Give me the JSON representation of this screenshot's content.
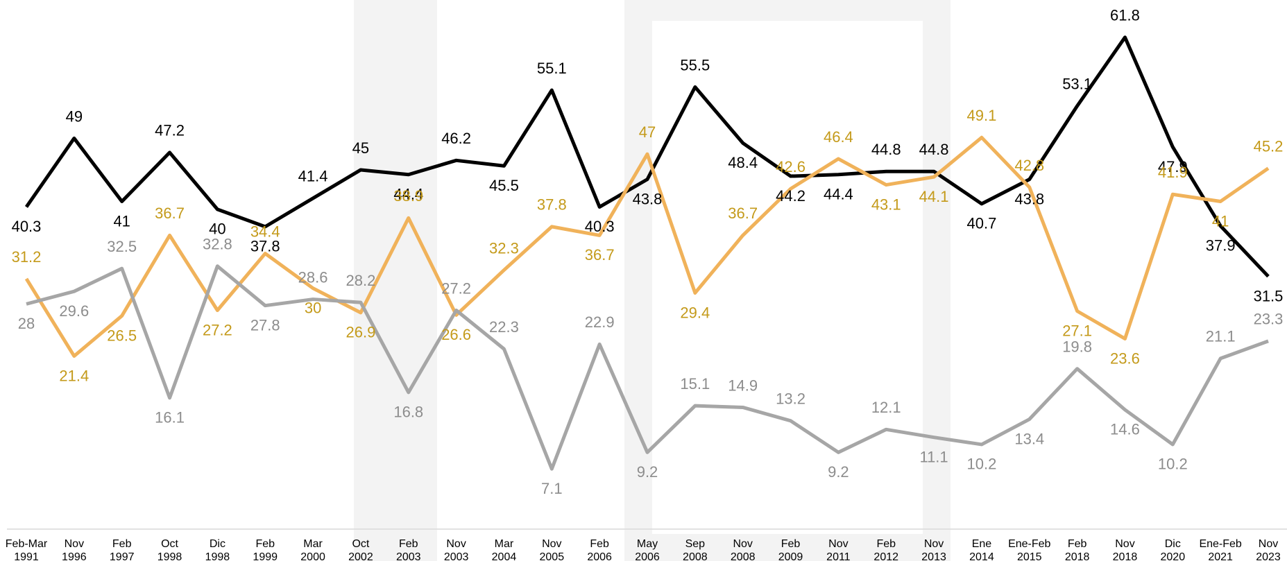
{
  "chart_data": {
    "type": "line",
    "categories": [
      [
        "Feb-Mar",
        "1991"
      ],
      [
        "Nov",
        "1996"
      ],
      [
        "Feb",
        "1997"
      ],
      [
        "Oct",
        "1998"
      ],
      [
        "Dic",
        "1998"
      ],
      [
        "Feb",
        "1999"
      ],
      [
        "Mar",
        "2000"
      ],
      [
        "Oct",
        "2002"
      ],
      [
        "Feb",
        "2003"
      ],
      [
        "Nov",
        "2003"
      ],
      [
        "Mar",
        "2004"
      ],
      [
        "Nov",
        "2005"
      ],
      [
        "Feb",
        "2006"
      ],
      [
        "May",
        "2006"
      ],
      [
        "Sep",
        "2008"
      ],
      [
        "Nov",
        "2008"
      ],
      [
        "Feb",
        "2009"
      ],
      [
        "Nov",
        "2011"
      ],
      [
        "Feb",
        "2012"
      ],
      [
        "Nov",
        "2013"
      ],
      [
        "Ene",
        "2014"
      ],
      [
        "Ene-Feb",
        "2015"
      ],
      [
        "Feb",
        "2018"
      ],
      [
        "Nov",
        "2018"
      ],
      [
        "Dic",
        "2020"
      ],
      [
        "Ene-Feb",
        "2021"
      ],
      [
        "Nov",
        "2023"
      ]
    ],
    "series": [
      {
        "color": "#000000",
        "label_color": "#000000",
        "values": [
          40.3,
          49,
          41,
          47.2,
          40,
          37.8,
          41.4,
          45,
          44.4,
          46.2,
          45.5,
          55.1,
          40.3,
          43.8,
          55.5,
          48.4,
          44.2,
          44.4,
          44.8,
          44.8,
          40.7,
          43.8,
          53.1,
          61.8,
          47.9,
          37.9,
          31.5
        ]
      },
      {
        "color": "#f0b25a",
        "label_color": "#c49a1a",
        "values": [
          31.2,
          21.4,
          26.5,
          36.7,
          27.2,
          34.4,
          30,
          26.9,
          38.9,
          26.6,
          32.3,
          37.8,
          36.7,
          47,
          29.4,
          36.7,
          42.6,
          46.4,
          43.1,
          44.1,
          49.1,
          42.8,
          27.1,
          23.6,
          41.9,
          41,
          45.2
        ]
      },
      {
        "color": "#a6a6a6",
        "label_color": "#8c8c8c",
        "values": [
          28,
          29.6,
          32.5,
          16.1,
          32.8,
          27.8,
          28.6,
          28.2,
          16.8,
          27.2,
          22.3,
          7.1,
          22.9,
          9.2,
          15.1,
          14.9,
          13.2,
          9.2,
          12.1,
          11.1,
          10.2,
          13.4,
          19.8,
          14.6,
          10.2,
          21.1,
          23.3
        ]
      }
    ],
    "ylim": [
      0,
      66
    ]
  }
}
